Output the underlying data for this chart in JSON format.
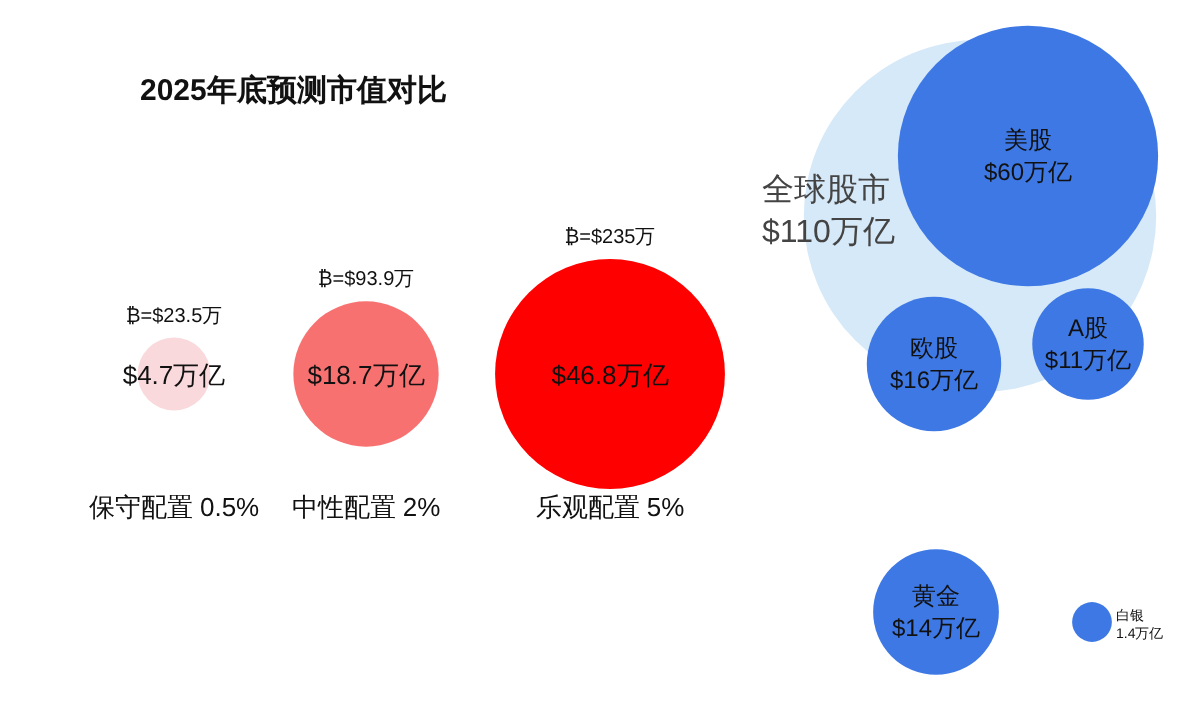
{
  "chart_data": {
    "type": "other",
    "title": "2025年底预测市值对比",
    "categories": [
      "保守配置 0.5%",
      "中性配置 2%",
      "乐观配置 5%",
      "全球股市",
      "美股",
      "欧股",
      "A股",
      "黄金",
      "白银"
    ],
    "values": [
      4.7,
      18.7,
      46.8,
      110,
      60,
      16,
      11,
      14,
      1.4
    ],
    "value_labels": [
      "$4.7万亿",
      "$18.7万亿",
      "$46.8万亿",
      "$110万亿",
      "$60万亿",
      "$16万亿",
      "$11万亿",
      "$14万亿",
      "1.4万亿"
    ],
    "colors": [
      "#f9d9dc",
      "#f87171",
      "#ff0000",
      "#d6e9f8",
      "#3d78e4",
      "#3d78e4",
      "#3d78e4",
      "#3d78e4",
      "#3d78e4"
    ],
    "annotations": [
      "₿=$23.5万",
      "₿=$93.9万",
      "₿=$235万"
    ]
  }
}
